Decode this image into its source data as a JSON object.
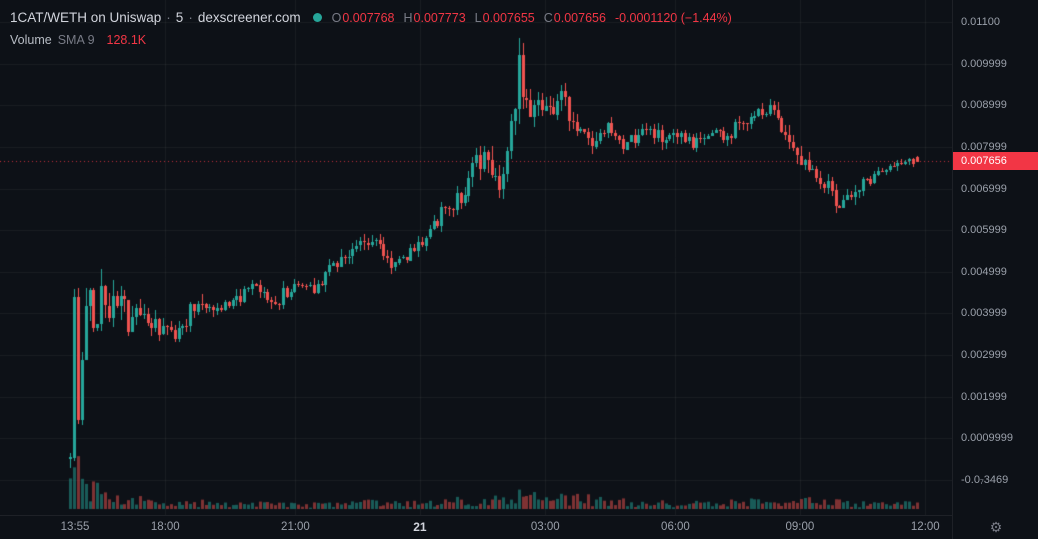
{
  "header": {
    "symbol": "1CAT/WETH on Uniswap",
    "interval": "5",
    "source": "dexscreener.com",
    "separator": "·",
    "ohlc": [
      {
        "label": "O",
        "value": "0.007768"
      },
      {
        "label": "H",
        "value": "0.007773"
      },
      {
        "label": "L",
        "value": "0.007655"
      },
      {
        "label": "C",
        "value": "0.007656"
      }
    ],
    "change": "-0.0001120 (−1.44%)",
    "indicator": {
      "name": "Volume",
      "params": "SMA 9",
      "value": "128.1K"
    }
  },
  "colors": {
    "background": "#0d1117",
    "candle_up": "#26a69a",
    "candle_down": "#ef5350",
    "volume_up": "rgba(38,166,154,0.5)",
    "volume_down": "rgba(239,83,80,0.5)",
    "grid": "rgba(255,255,255,0.05)",
    "price_line": "rgba(242,54,69,0.8)",
    "price_label_bg": "#f23645",
    "status_dot": "#26a69a",
    "down_text": "#f23645",
    "axis_text": "#9aa0aa"
  },
  "price_axis": {
    "ticks": [
      {
        "label": "0.01100",
        "price": 0.011
      },
      {
        "label": "0.009999",
        "price": 0.009999
      },
      {
        "label": "0.008999",
        "price": 0.008999
      },
      {
        "label": "0.007999",
        "price": 0.007999
      },
      {
        "label": "0.006999",
        "price": 0.006999
      },
      {
        "label": "0.005999",
        "price": 0.005999
      },
      {
        "label": "0.004999",
        "price": 0.004999
      },
      {
        "label": "0.003999",
        "price": 0.003999
      },
      {
        "label": "0.002999",
        "price": 0.002999
      },
      {
        "label": "0.001999",
        "price": 0.001999
      },
      {
        "label": "0.0009999",
        "price": 0.0009999
      },
      {
        "label": "-0.0₇3469",
        "price": 0
      }
    ],
    "price_label": {
      "text": "0.007656",
      "price": 0.007656
    }
  },
  "time_axis": {
    "ticks": [
      {
        "label": "13:55",
        "t": 0.079,
        "grid": false,
        "strong": false
      },
      {
        "label": "18:00",
        "t": 0.174,
        "grid": true,
        "strong": false
      },
      {
        "label": "21:00",
        "t": 0.311,
        "grid": true,
        "strong": false
      },
      {
        "label": "21",
        "t": 0.442,
        "grid": true,
        "strong": true
      },
      {
        "label": "03:00",
        "t": 0.574,
        "grid": true,
        "strong": false
      },
      {
        "label": "06:00",
        "t": 0.711,
        "grid": true,
        "strong": false
      },
      {
        "label": "09:00",
        "t": 0.842,
        "grid": true,
        "strong": false
      },
      {
        "label": "12:00",
        "t": 0.974,
        "grid": true,
        "strong": false
      }
    ]
  },
  "chart_data": {
    "type": "candlestick",
    "pair": "1CAT/WETH",
    "venue": "Uniswap",
    "interval_minutes": 5,
    "y_axis": {
      "min": 0,
      "max": 0.011
    },
    "current_price": 0.007656,
    "last_candle": {
      "o": 0.007768,
      "h": 0.007773,
      "l": 0.007655,
      "c": 0.007656
    },
    "candle_count": 220,
    "t_start": 0.074,
    "t_end": 0.965,
    "price_path": [
      [
        0.074,
        0.0005,
        0.0004
      ],
      [
        0.078,
        0.0047,
        0.0006
      ],
      [
        0.083,
        0.0004,
        0.0007
      ],
      [
        0.088,
        0.0038,
        0.0012
      ],
      [
        0.095,
        0.0042,
        0.001
      ],
      [
        0.102,
        0.0036,
        0.0008
      ],
      [
        0.108,
        0.005,
        0.0009
      ],
      [
        0.115,
        0.0041,
        0.0008
      ],
      [
        0.125,
        0.0044,
        0.0006
      ],
      [
        0.135,
        0.0038,
        0.0005
      ],
      [
        0.15,
        0.004,
        0.0004
      ],
      [
        0.165,
        0.0036,
        0.0004
      ],
      [
        0.185,
        0.0035,
        0.0003
      ],
      [
        0.21,
        0.0044,
        0.0004
      ],
      [
        0.225,
        0.0041,
        0.0003
      ],
      [
        0.245,
        0.0043,
        0.0003
      ],
      [
        0.27,
        0.0046,
        0.0003
      ],
      [
        0.285,
        0.0042,
        0.0003
      ],
      [
        0.3,
        0.0045,
        0.0003
      ],
      [
        0.315,
        0.0047,
        0.0002
      ],
      [
        0.33,
        0.0046,
        0.0003
      ],
      [
        0.35,
        0.0052,
        0.0003
      ],
      [
        0.375,
        0.0056,
        0.0003
      ],
      [
        0.395,
        0.0058,
        0.0003
      ],
      [
        0.41,
        0.0052,
        0.0003
      ],
      [
        0.425,
        0.0053,
        0.0002
      ],
      [
        0.445,
        0.0058,
        0.0003
      ],
      [
        0.465,
        0.0064,
        0.0003
      ],
      [
        0.485,
        0.0068,
        0.0004
      ],
      [
        0.5,
        0.0075,
        0.0005
      ],
      [
        0.515,
        0.0077,
        0.0006
      ],
      [
        0.525,
        0.0071,
        0.0004
      ],
      [
        0.54,
        0.0085,
        0.0008
      ],
      [
        0.547,
        0.01,
        0.0009
      ],
      [
        0.555,
        0.009,
        0.0007
      ],
      [
        0.565,
        0.0093,
        0.0005
      ],
      [
        0.578,
        0.0089,
        0.0004
      ],
      [
        0.59,
        0.0092,
        0.0004
      ],
      [
        0.605,
        0.0085,
        0.0004
      ],
      [
        0.625,
        0.008,
        0.0004
      ],
      [
        0.64,
        0.0084,
        0.0003
      ],
      [
        0.655,
        0.0079,
        0.0003
      ],
      [
        0.67,
        0.0083,
        0.0003
      ],
      [
        0.685,
        0.0084,
        0.0003
      ],
      [
        0.7,
        0.0081,
        0.0003
      ],
      [
        0.715,
        0.0082,
        0.0003
      ],
      [
        0.73,
        0.008,
        0.0003
      ],
      [
        0.75,
        0.0084,
        0.0003
      ],
      [
        0.765,
        0.0082,
        0.0003
      ],
      [
        0.78,
        0.0086,
        0.0003
      ],
      [
        0.8,
        0.0088,
        0.0003
      ],
      [
        0.815,
        0.0089,
        0.0003
      ],
      [
        0.83,
        0.0082,
        0.0004
      ],
      [
        0.845,
        0.0077,
        0.0004
      ],
      [
        0.86,
        0.0074,
        0.0003
      ],
      [
        0.875,
        0.0069,
        0.0003
      ],
      [
        0.885,
        0.0066,
        0.0003
      ],
      [
        0.9,
        0.007,
        0.0003
      ],
      [
        0.915,
        0.0072,
        0.0002
      ],
      [
        0.93,
        0.0075,
        0.0002
      ],
      [
        0.95,
        0.0076,
        0.0002
      ],
      [
        0.965,
        0.007656,
        0.0001
      ]
    ],
    "volume_path": [
      [
        0.074,
        30
      ],
      [
        0.079,
        46
      ],
      [
        0.085,
        38
      ],
      [
        0.095,
        26
      ],
      [
        0.105,
        20
      ],
      [
        0.12,
        14
      ],
      [
        0.14,
        10
      ],
      [
        0.16,
        8
      ],
      [
        0.19,
        6
      ],
      [
        0.22,
        7
      ],
      [
        0.26,
        5
      ],
      [
        0.3,
        6
      ],
      [
        0.34,
        5
      ],
      [
        0.38,
        8
      ],
      [
        0.41,
        6
      ],
      [
        0.45,
        7
      ],
      [
        0.48,
        9
      ],
      [
        0.51,
        10
      ],
      [
        0.54,
        18
      ],
      [
        0.555,
        14
      ],
      [
        0.58,
        10
      ],
      [
        0.6,
        12
      ],
      [
        0.63,
        10
      ],
      [
        0.66,
        8
      ],
      [
        0.69,
        7
      ],
      [
        0.72,
        6
      ],
      [
        0.75,
        7
      ],
      [
        0.78,
        8
      ],
      [
        0.81,
        7
      ],
      [
        0.84,
        9
      ],
      [
        0.87,
        8
      ],
      [
        0.9,
        6
      ],
      [
        0.93,
        5
      ],
      [
        0.965,
        6
      ]
    ]
  },
  "footer": {
    "settings_icon": "⚙"
  }
}
